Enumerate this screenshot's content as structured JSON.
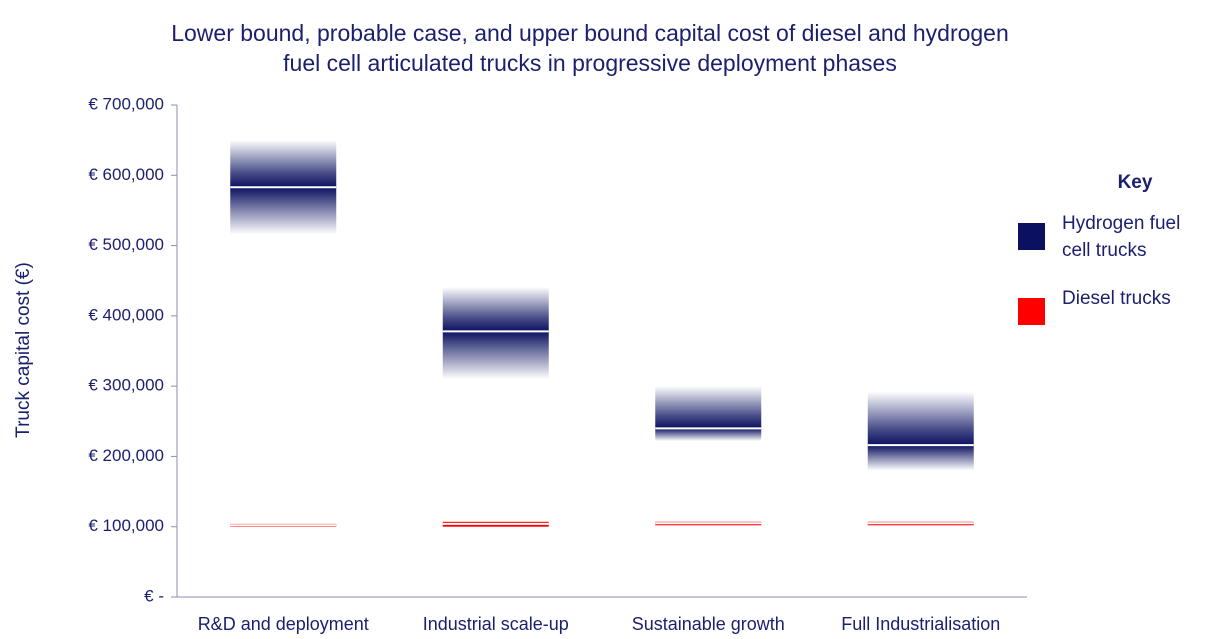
{
  "chart_data": {
    "type": "floating-bar",
    "title": "Lower bound, probable case, and upper bound capital cost of diesel and hydrogen fuel cell articulated trucks in progressive deployment phases",
    "y_label": "Truck capital cost (€)",
    "legend_title": "Key",
    "legend_position": "right",
    "categories": [
      "R&D and deployment",
      "Industrial scale-up",
      "Sustainable growth",
      "Full Industrialisation"
    ],
    "series": [
      {
        "name": "Hydrogen fuel cell trucks",
        "color": "#0b1160",
        "lower": [
          516000,
          310000,
          222000,
          180000
        ],
        "probable": [
          583000,
          378000,
          240000,
          216000
        ],
        "upper": [
          650000,
          441000,
          300000,
          292000
        ]
      },
      {
        "name": "Diesel trucks",
        "color": "#ff0000",
        "lower": [
          100000,
          100000,
          102000,
          102000
        ],
        "probable": [
          102000,
          104000,
          105000,
          105000
        ],
        "upper": [
          104000,
          107000,
          107000,
          107000
        ]
      }
    ],
    "ylim": [
      0,
      700000
    ],
    "yticks": [
      {
        "value": 0,
        "label": "€ -"
      },
      {
        "value": 100000,
        "label": "€ 100,000"
      },
      {
        "value": 200000,
        "label": "€ 200,000"
      },
      {
        "value": 300000,
        "label": "€ 300,000"
      },
      {
        "value": 400000,
        "label": "€ 400,000"
      },
      {
        "value": 500000,
        "label": "€ 500,000"
      },
      {
        "value": 600000,
        "label": "€ 600,000"
      },
      {
        "value": 700000,
        "label": "€ 700,000"
      }
    ],
    "grid": false
  }
}
